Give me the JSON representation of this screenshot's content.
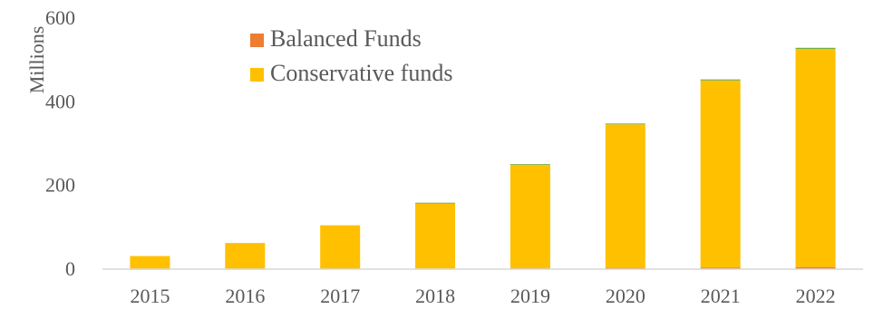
{
  "chart_data": {
    "type": "bar",
    "stacked": true,
    "title": "",
    "xlabel": "",
    "ylabel": "Millions",
    "ylim": [
      0,
      600
    ],
    "yticks": [
      0,
      200,
      400,
      600
    ],
    "categories": [
      "2015",
      "2016",
      "2017",
      "2018",
      "2019",
      "2020",
      "2021",
      "2022"
    ],
    "series": [
      {
        "name": "Balanced Funds",
        "color": "#ED7D31",
        "values": [
          0.3,
          0.5,
          0.8,
          1.2,
          2,
          3,
          4,
          5
        ]
      },
      {
        "name": "Conservative funds",
        "color": "#FFC000",
        "values": [
          31,
          62,
          104,
          157,
          248,
          343,
          447,
          521
        ]
      },
      {
        "name": "",
        "color": "#70AD47",
        "values": [
          0,
          0,
          0,
          0.5,
          1,
          2,
          2.5,
          3
        ],
        "in_legend": false
      }
    ],
    "grid": false,
    "legend_position": "top-left"
  }
}
